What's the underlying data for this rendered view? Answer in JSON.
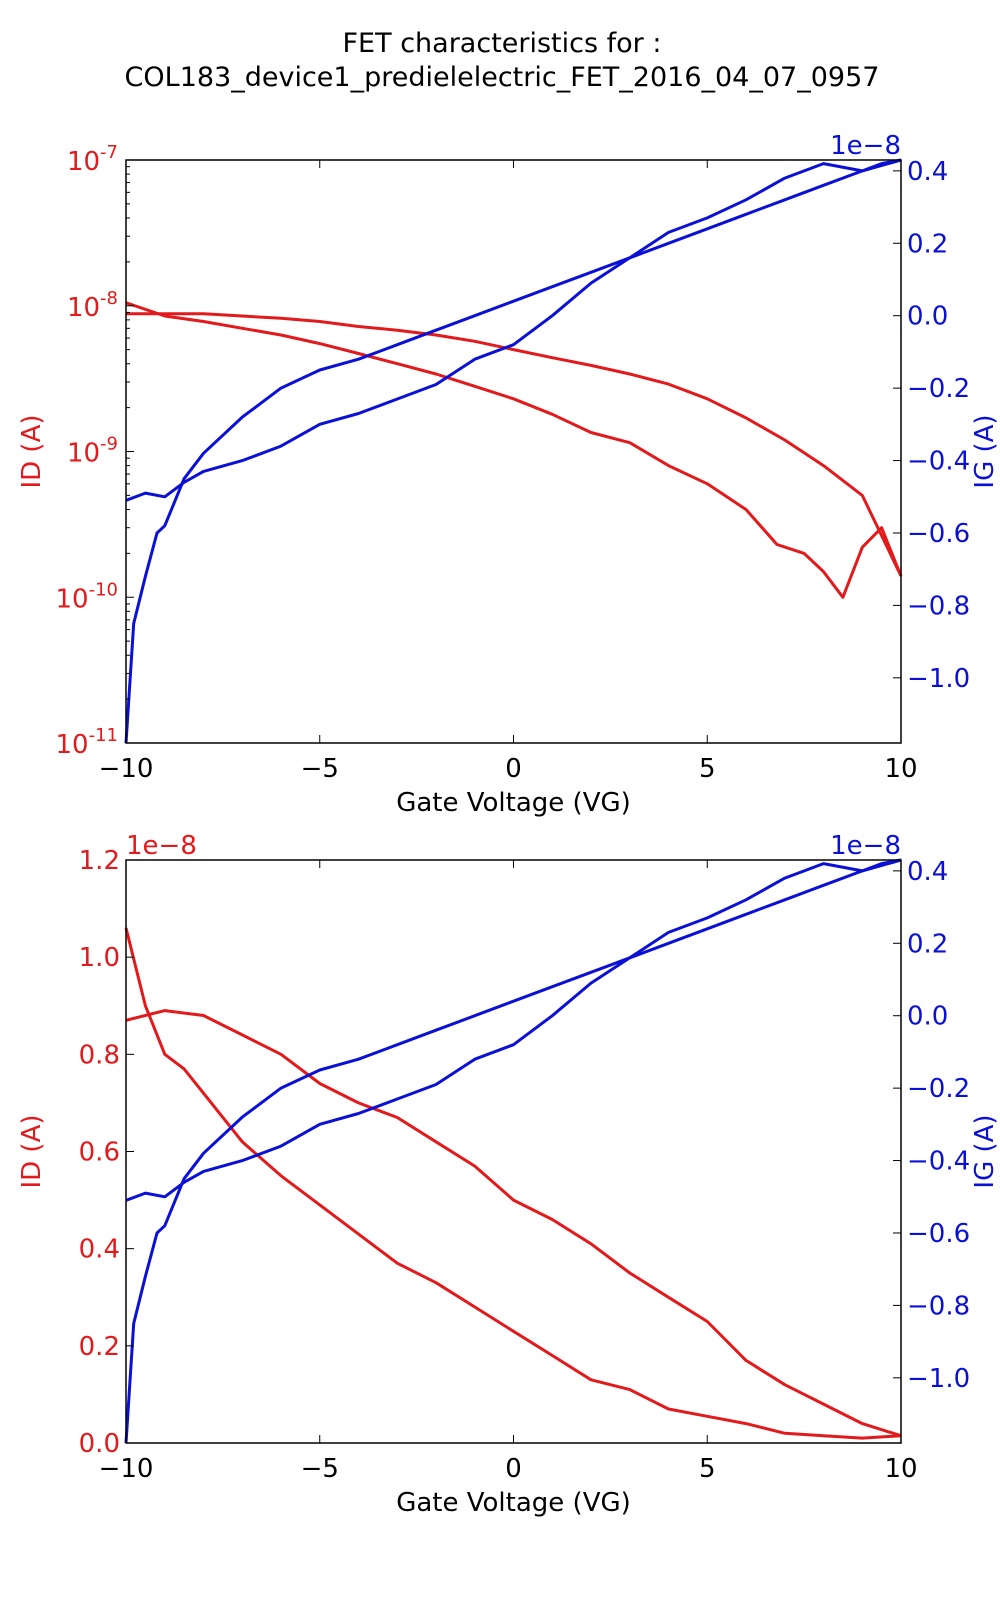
{
  "figure": {
    "title_line1": "FET characteristics for :",
    "title_line2": "COL183_device1_predielelectric_FET_2016_04_07_0957"
  },
  "colors": {
    "id": "#e31a1c",
    "ig": "#0b10d6",
    "axis": "#000000"
  },
  "chart_data": [
    {
      "type": "line",
      "xlabel": "Gate Voltage (VG)",
      "ylabel_left": "ID (A)",
      "ylabel_right": "IG (A)",
      "left_scale": "log",
      "ylim_left": [
        1e-11,
        1e-07
      ],
      "left_ticks": [
        {
          "base": "10",
          "exp": "-7",
          "value": 1e-07
        },
        {
          "base": "10",
          "exp": "-8",
          "value": 1e-08
        },
        {
          "base": "10",
          "exp": "-9",
          "value": 1e-09
        },
        {
          "base": "10",
          "exp": "-10",
          "value": 1e-10
        },
        {
          "base": "10",
          "exp": "-11",
          "value": 1e-11
        }
      ],
      "left_offset": "",
      "ylim_right": [
        -1.18,
        0.43
      ],
      "right_ticks": [
        "0.4",
        "0.2",
        "0.0",
        "−0.2",
        "−0.4",
        "−0.6",
        "−0.8",
        "−1.0"
      ],
      "right_tick_values": [
        0.4,
        0.2,
        0.0,
        -0.2,
        -0.4,
        -0.6,
        -0.8,
        -1.0
      ],
      "right_offset": "1e−8",
      "xlim": [
        -10,
        10
      ],
      "x_ticks": [
        "−10",
        "−5",
        "0",
        "5",
        "10"
      ],
      "x_tick_values": [
        -10,
        -5,
        0,
        5,
        10
      ],
      "series": [
        {
          "axis": "left",
          "color_key": "id",
          "x": [
            -10,
            -9,
            -8,
            -7,
            -6,
            -5,
            -4,
            -3,
            -2,
            -1,
            0,
            1,
            2,
            3,
            4,
            5,
            6,
            6.8,
            7.5,
            8,
            8.5,
            9,
            9.5,
            10
          ],
          "y": [
            1.05e-08,
            8.5e-09,
            7.8e-09,
            7e-09,
            6.3e-09,
            5.5e-09,
            4.7e-09,
            4e-09,
            3.4e-09,
            2.8e-09,
            2.3e-09,
            1.8e-09,
            1.35e-09,
            1.15e-09,
            8e-10,
            6e-10,
            4e-10,
            2.3e-10,
            2e-10,
            1.5e-10,
            1e-10,
            2.2e-10,
            3e-10,
            1.4e-10
          ]
        },
        {
          "axis": "left",
          "color_key": "id",
          "x": [
            -10,
            -9,
            -8,
            -7,
            -6,
            -5,
            -4,
            -3,
            -2,
            -1,
            0,
            1,
            2,
            3,
            4,
            5,
            6,
            7,
            8,
            9,
            10
          ],
          "y": [
            8.8e-09,
            8.8e-09,
            8.8e-09,
            8.5e-09,
            8.2e-09,
            7.8e-09,
            7.2e-09,
            6.8e-09,
            6.3e-09,
            5.7e-09,
            5e-09,
            4.4e-09,
            3.9e-09,
            3.4e-09,
            2.9e-09,
            2.3e-09,
            1.7e-09,
            1.2e-09,
            8e-10,
            5e-10,
            1.4e-10
          ]
        },
        {
          "axis": "right",
          "color_key": "ig",
          "x": [
            -10,
            -9.8,
            -9.5,
            -9.2,
            -9,
            -8.5,
            -8,
            -7,
            -6,
            -5,
            -4,
            -3,
            -2,
            -1,
            0,
            1,
            2,
            3,
            4,
            5,
            6,
            7,
            8,
            9,
            10
          ],
          "y": [
            -1.18,
            -0.85,
            -0.72,
            -0.6,
            -0.58,
            -0.45,
            -0.38,
            -0.28,
            -0.2,
            -0.15,
            -0.12,
            -0.08,
            -0.04,
            0.0,
            0.04,
            0.08,
            0.12,
            0.16,
            0.2,
            0.24,
            0.28,
            0.32,
            0.36,
            0.4,
            0.43
          ]
        },
        {
          "axis": "right",
          "color_key": "ig",
          "x": [
            -10,
            -9.5,
            -9,
            -8.5,
            -8,
            -7,
            -6,
            -5,
            -4,
            -3,
            -2,
            -1,
            0,
            1,
            2,
            3,
            4,
            5,
            6,
            7,
            8,
            9,
            9.5,
            10
          ],
          "y": [
            -0.51,
            -0.49,
            -0.5,
            -0.46,
            -0.43,
            -0.4,
            -0.36,
            -0.3,
            -0.27,
            -0.23,
            -0.19,
            -0.12,
            -0.08,
            0.0,
            0.09,
            0.16,
            0.23,
            0.27,
            0.32,
            0.38,
            0.42,
            0.4,
            0.42,
            0.43
          ]
        }
      ]
    },
    {
      "type": "line",
      "xlabel": "Gate Voltage (VG)",
      "ylabel_left": "ID (A)",
      "ylabel_right": "IG (A)",
      "left_scale": "linear",
      "ylim_left": [
        0.0,
        1.2
      ],
      "left_ticks": [
        {
          "text": "1.2",
          "value": 1.2
        },
        {
          "text": "1.0",
          "value": 1.0
        },
        {
          "text": "0.8",
          "value": 0.8
        },
        {
          "text": "0.6",
          "value": 0.6
        },
        {
          "text": "0.4",
          "value": 0.4
        },
        {
          "text": "0.2",
          "value": 0.2
        },
        {
          "text": "0.0",
          "value": 0.0
        }
      ],
      "left_offset": "1e−8",
      "ylim_right": [
        -1.18,
        0.43
      ],
      "right_ticks": [
        "0.4",
        "0.2",
        "0.0",
        "−0.2",
        "−0.4",
        "−0.6",
        "−0.8",
        "−1.0"
      ],
      "right_tick_values": [
        0.4,
        0.2,
        0.0,
        -0.2,
        -0.4,
        -0.6,
        -0.8,
        -1.0
      ],
      "right_offset": "1e−8",
      "xlim": [
        -10,
        10
      ],
      "x_ticks": [
        "−10",
        "−5",
        "0",
        "5",
        "10"
      ],
      "x_tick_values": [
        -10,
        -5,
        0,
        5,
        10
      ],
      "series": [
        {
          "axis": "left",
          "color_key": "id",
          "x": [
            -10,
            -9.5,
            -9,
            -8.5,
            -8,
            -7,
            -6,
            -5,
            -4,
            -3,
            -2,
            -1,
            0,
            1,
            2,
            3,
            4,
            5,
            6,
            7,
            8,
            9,
            10
          ],
          "y": [
            1.06,
            0.9,
            0.8,
            0.77,
            0.72,
            0.62,
            0.55,
            0.49,
            0.43,
            0.37,
            0.33,
            0.28,
            0.23,
            0.18,
            0.13,
            0.11,
            0.07,
            0.055,
            0.04,
            0.02,
            0.015,
            0.01,
            0.015
          ]
        },
        {
          "axis": "left",
          "color_key": "id",
          "x": [
            -10,
            -9,
            -8,
            -7,
            -6,
            -5,
            -4,
            -3,
            -2,
            -1,
            0,
            1,
            2,
            3,
            4,
            5,
            6,
            7,
            8,
            9,
            10
          ],
          "y": [
            0.87,
            0.89,
            0.88,
            0.84,
            0.8,
            0.74,
            0.7,
            0.67,
            0.62,
            0.57,
            0.5,
            0.46,
            0.41,
            0.35,
            0.3,
            0.25,
            0.17,
            0.12,
            0.08,
            0.04,
            0.015
          ]
        },
        {
          "axis": "right",
          "color_key": "ig",
          "x": [
            -10,
            -9.8,
            -9.5,
            -9.2,
            -9,
            -8.5,
            -8,
            -7,
            -6,
            -5,
            -4,
            -3,
            -2,
            -1,
            0,
            1,
            2,
            3,
            4,
            5,
            6,
            7,
            8,
            9,
            10
          ],
          "y": [
            -1.18,
            -0.85,
            -0.72,
            -0.6,
            -0.58,
            -0.45,
            -0.38,
            -0.28,
            -0.2,
            -0.15,
            -0.12,
            -0.08,
            -0.04,
            0.0,
            0.04,
            0.08,
            0.12,
            0.16,
            0.2,
            0.24,
            0.28,
            0.32,
            0.36,
            0.4,
            0.43
          ]
        },
        {
          "axis": "right",
          "color_key": "ig",
          "x": [
            -10,
            -9.5,
            -9,
            -8.5,
            -8,
            -7,
            -6,
            -5,
            -4,
            -3,
            -2,
            -1,
            0,
            1,
            2,
            3,
            4,
            5,
            6,
            7,
            8,
            9,
            9.5,
            10
          ],
          "y": [
            -0.51,
            -0.49,
            -0.5,
            -0.46,
            -0.43,
            -0.4,
            -0.36,
            -0.3,
            -0.27,
            -0.23,
            -0.19,
            -0.12,
            -0.08,
            0.0,
            0.09,
            0.16,
            0.23,
            0.27,
            0.32,
            0.38,
            0.42,
            0.4,
            0.42,
            0.43
          ]
        }
      ]
    }
  ]
}
